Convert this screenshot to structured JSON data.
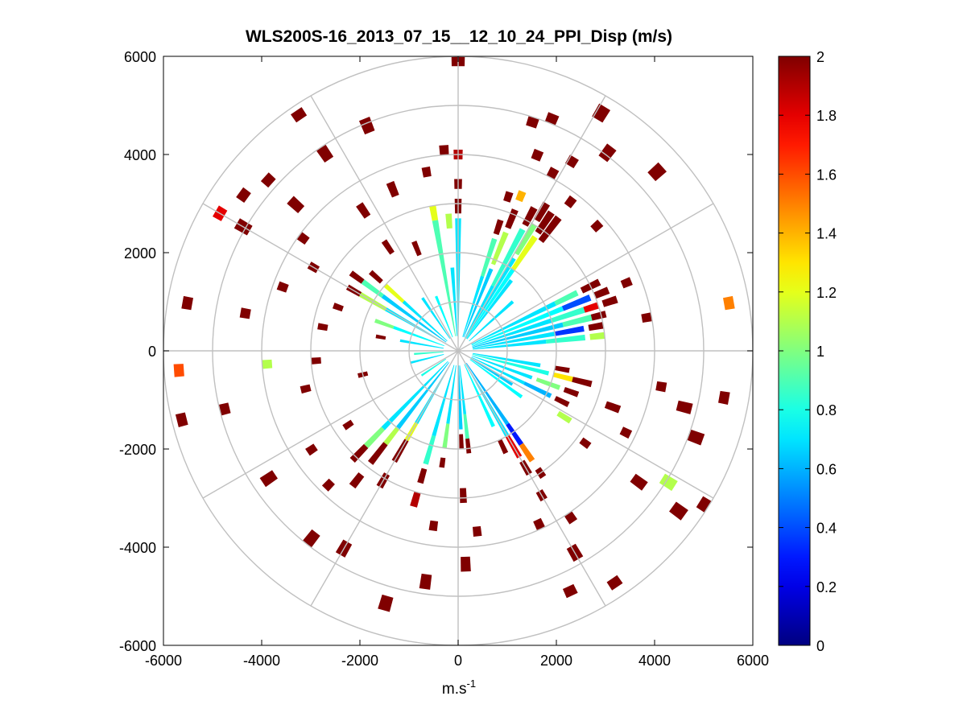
{
  "chart_data": {
    "type": "heatmap",
    "subtype": "polar-ppi",
    "title": "WLS200S-16_2013_07_15__12_10_24_PPI_Disp (m/s)",
    "xlabel": "m.s",
    "xlabel_superscript": "-1",
    "ylabel": "",
    "xlim": [
      -6000,
      6000
    ],
    "ylim": [
      -6000,
      6000
    ],
    "x_ticks": [
      -6000,
      -4000,
      -2000,
      0,
      2000,
      4000,
      6000
    ],
    "y_ticks": [
      -6000,
      -4000,
      -2000,
      0,
      2000,
      4000,
      6000
    ],
    "x_tick_labels": [
      "-6000",
      "-4000",
      "-2000",
      "0",
      "2000",
      "4000",
      "6000"
    ],
    "y_tick_labels": [
      "-6000",
      "-4000",
      "-2000",
      "0",
      "2000",
      "4000",
      "6000"
    ],
    "polar_grid": {
      "ring_radii": [
        1000,
        2000,
        3000,
        4000,
        5000,
        6000
      ],
      "spoke_angles_deg": [
        0,
        30,
        60,
        90,
        120,
        150,
        180,
        210,
        240,
        270,
        300,
        330
      ]
    },
    "colorbar": {
      "colormap": "jet",
      "min": 0,
      "max": 2,
      "ticks": [
        0,
        0.2,
        0.4,
        0.6,
        0.8,
        1,
        1.2,
        1.4,
        1.6,
        1.8,
        2
      ],
      "tick_labels": [
        "0",
        "0.2",
        "0.4",
        "0.6",
        "0.8",
        "1",
        "1.2",
        "1.4",
        "1.6",
        "1.8",
        "2"
      ]
    },
    "range_gates": {
      "min_range": 250,
      "max_range": 6000,
      "gate_spacing": 50
    },
    "beams": [
      {
        "azimuth": 0,
        "cells": [
          [
            300,
            2700,
            0.7
          ],
          [
            2800,
            3100,
            2
          ],
          [
            3300,
            3500,
            2
          ],
          [
            3900,
            4100,
            1.9
          ],
          [
            5800,
            6000,
            2
          ]
        ]
      },
      {
        "azimuth": 18,
        "cells": [
          [
            300,
            1600,
            0.7
          ],
          [
            1600,
            2400,
            0.9
          ],
          [
            2500,
            2800,
            2
          ],
          [
            3200,
            3400,
            2
          ],
          [
            4800,
            5000,
            2
          ]
        ]
      },
      {
        "azimuth": 22,
        "cells": [
          [
            300,
            1800,
            0.65
          ],
          [
            1900,
            2600,
            1.1
          ],
          [
            2700,
            3100,
            2
          ],
          [
            3300,
            3500,
            1.4
          ],
          [
            4200,
            4400,
            2
          ],
          [
            5000,
            5200,
            2
          ]
        ]
      },
      {
        "azimuth": 28,
        "cells": [
          [
            300,
            1500,
            0.7
          ],
          [
            1500,
            2800,
            0.85
          ],
          [
            2900,
            3300,
            2
          ],
          [
            4000,
            4200,
            2
          ]
        ]
      },
      {
        "azimuth": 31,
        "cells": [
          [
            300,
            2200,
            0.7
          ],
          [
            2300,
            3000,
            1.0
          ],
          [
            3100,
            3500,
            2
          ],
          [
            4400,
            4600,
            2
          ],
          [
            5500,
            5800,
            2
          ]
        ]
      },
      {
        "azimuth": 34,
        "cells": [
          [
            300,
            2000,
            0.75
          ],
          [
            2000,
            2800,
            1.2
          ],
          [
            2900,
            3400,
            2
          ]
        ]
      },
      {
        "azimuth": 37,
        "cells": [
          [
            300,
            1800,
            0.7
          ],
          [
            2800,
            3400,
            2
          ],
          [
            3700,
            3900,
            2
          ],
          [
            4900,
            5200,
            2
          ]
        ]
      },
      {
        "azimuth": 48,
        "cells": [
          [
            300,
            1500,
            0.7
          ],
          [
            3700,
            3900,
            2
          ],
          [
            5300,
            5600,
            2
          ]
        ]
      },
      {
        "azimuth": 64,
        "cells": [
          [
            300,
            2200,
            0.7
          ],
          [
            2200,
            2700,
            0.9
          ],
          [
            2800,
            3200,
            2
          ]
        ]
      },
      {
        "azimuth": 68,
        "cells": [
          [
            300,
            2300,
            0.75
          ],
          [
            2300,
            2900,
            0.4
          ],
          [
            3000,
            3300,
            2
          ],
          [
            3600,
            3800,
            2
          ]
        ]
      },
      {
        "azimuth": 72,
        "cells": [
          [
            300,
            2000,
            0.7
          ],
          [
            2000,
            2700,
            0.85
          ],
          [
            2700,
            3000,
            1.8
          ],
          [
            3100,
            3400,
            2
          ]
        ]
      },
      {
        "azimuth": 76,
        "cells": [
          [
            300,
            2200,
            0.65
          ],
          [
            2200,
            2800,
            0.9
          ],
          [
            2800,
            3100,
            2
          ]
        ]
      },
      {
        "azimuth": 80,
        "cells": [
          [
            300,
            2000,
            0.7
          ],
          [
            2000,
            2600,
            0.35
          ],
          [
            2700,
            3000,
            2
          ],
          [
            3800,
            4000,
            2
          ],
          [
            5500,
            5700,
            1.5
          ]
        ]
      },
      {
        "azimuth": 84,
        "cells": [
          [
            300,
            1800,
            0.7
          ],
          [
            1800,
            2600,
            0.85
          ],
          [
            2700,
            3000,
            1.1
          ]
        ]
      },
      {
        "azimuth": 100,
        "cells": [
          [
            300,
            1700,
            0.7
          ],
          [
            2000,
            2300,
            2
          ],
          [
            4100,
            4300,
            2
          ],
          [
            5400,
            5600,
            2
          ]
        ]
      },
      {
        "azimuth": 104,
        "cells": [
          [
            300,
            1900,
            0.8
          ],
          [
            2000,
            2400,
            1.3
          ],
          [
            2400,
            2800,
            2
          ],
          [
            4600,
            4900,
            2
          ]
        ]
      },
      {
        "azimuth": 110,
        "cells": [
          [
            300,
            1600,
            0.7
          ],
          [
            1700,
            2200,
            1.0
          ],
          [
            2300,
            2600,
            2
          ],
          [
            3200,
            3500,
            2
          ],
          [
            5000,
            5300,
            2
          ]
        ]
      },
      {
        "azimuth": 116,
        "cells": [
          [
            300,
            1500,
            0.7
          ],
          [
            1500,
            2100,
            0.6
          ],
          [
            2200,
            2500,
            2
          ],
          [
            3700,
            3900,
            2
          ]
        ]
      },
      {
        "azimuth": 122,
        "cells": [
          [
            300,
            1300,
            0.65
          ],
          [
            2400,
            2700,
            1.1
          ],
          [
            4900,
            5200,
            1.1
          ],
          [
            5800,
            6000,
            2
          ]
        ]
      },
      {
        "azimuth": 126,
        "cells": [
          [
            300,
            1600,
            0.75
          ],
          [
            3100,
            3300,
            2
          ],
          [
            4400,
            4700,
            2
          ],
          [
            5400,
            5700,
            2
          ]
        ]
      },
      {
        "azimuth": 146,
        "cells": [
          [
            300,
            1800,
            0.6
          ],
          [
            1800,
            2300,
            0.3
          ],
          [
            2300,
            2700,
            1.5
          ],
          [
            2900,
            3100,
            2
          ],
          [
            4000,
            4200,
            2
          ],
          [
            5600,
            5800,
            2
          ]
        ]
      },
      {
        "azimuth": 150,
        "cells": [
          [
            300,
            2000,
            0.7
          ],
          [
            2000,
            2500,
            1.8
          ],
          [
            2600,
            2900,
            2
          ],
          [
            3300,
            3500,
            2
          ],
          [
            4600,
            4900,
            2
          ]
        ]
      },
      {
        "azimuth": 155,
        "cells": [
          [
            300,
            1700,
            0.75
          ],
          [
            2000,
            2300,
            2
          ],
          [
            3800,
            4000,
            2
          ],
          [
            5300,
            5500,
            2
          ]
        ]
      },
      {
        "azimuth": 174,
        "cells": [
          [
            300,
            1300,
            0.7
          ],
          [
            1300,
            1800,
            0.9
          ],
          [
            1800,
            2100,
            2
          ],
          [
            3600,
            3800,
            2
          ]
        ]
      },
      {
        "azimuth": 178,
        "cells": [
          [
            300,
            1600,
            0.65
          ],
          [
            1700,
            2000,
            2
          ],
          [
            2800,
            3100,
            2
          ],
          [
            4200,
            4500,
            2
          ]
        ]
      },
      {
        "azimuth": 188,
        "cells": [
          [
            300,
            1500,
            0.7
          ],
          [
            1500,
            2000,
            1.0
          ],
          [
            2200,
            2400,
            2
          ],
          [
            3500,
            3700,
            2
          ],
          [
            4600,
            4900,
            2
          ]
        ]
      },
      {
        "azimuth": 196,
        "cells": [
          [
            300,
            1800,
            0.7
          ],
          [
            1800,
            2400,
            0.85
          ],
          [
            2500,
            2800,
            2
          ],
          [
            3000,
            3300,
            1.9
          ],
          [
            5200,
            5500,
            2
          ]
        ]
      },
      {
        "azimuth": 210,
        "cells": [
          [
            300,
            1700,
            0.7
          ],
          [
            1700,
            2100,
            1.2
          ],
          [
            2100,
            2600,
            2
          ],
          [
            2900,
            3200,
            2
          ],
          [
            4500,
            4800,
            2
          ]
        ]
      },
      {
        "azimuth": 218,
        "cells": [
          [
            300,
            2000,
            0.65
          ],
          [
            2000,
            2400,
            1.1
          ],
          [
            2400,
            2900,
            2
          ],
          [
            3200,
            3500,
            2
          ],
          [
            4700,
            5000,
            2
          ]
        ]
      },
      {
        "azimuth": 224,
        "cells": [
          [
            300,
            2200,
            0.7
          ],
          [
            2200,
            2700,
            1.0
          ],
          [
            2700,
            3100,
            2
          ],
          [
            3700,
            3900,
            2
          ]
        ]
      },
      {
        "azimuth": 236,
        "cells": [
          [
            300,
            900,
            0.8
          ],
          [
            2600,
            2800,
            2
          ],
          [
            3500,
            3700,
            2
          ],
          [
            4500,
            4800,
            2
          ]
        ]
      },
      {
        "azimuth": 256,
        "cells": [
          [
            300,
            1000,
            0.7
          ],
          [
            1900,
            2100,
            2
          ],
          [
            3100,
            3300,
            2
          ],
          [
            4800,
            5000,
            2
          ],
          [
            5700,
            5900,
            2
          ]
        ]
      },
      {
        "azimuth": 266,
        "cells": [
          [
            300,
            900,
            0.85
          ],
          [
            2800,
            3000,
            2
          ],
          [
            3800,
            4000,
            1.1
          ],
          [
            5600,
            5800,
            1.6
          ]
        ]
      },
      {
        "azimuth": 280,
        "cells": [
          [
            300,
            1200,
            0.7
          ],
          [
            1500,
            1700,
            2
          ],
          [
            2700,
            2900,
            2
          ],
          [
            4300,
            4500,
            2
          ],
          [
            5500,
            5700,
            2
          ]
        ]
      },
      {
        "azimuth": 290,
        "cells": [
          [
            300,
            1400,
            0.75
          ],
          [
            1400,
            1800,
            1.0
          ],
          [
            2500,
            2700,
            2
          ],
          [
            3700,
            3900,
            2
          ]
        ]
      },
      {
        "azimuth": 300,
        "cells": [
          [
            300,
            1700,
            0.7
          ],
          [
            1700,
            2300,
            1.1
          ],
          [
            2300,
            2600,
            2
          ],
          [
            3300,
            3500,
            2
          ],
          [
            4900,
            5200,
            2
          ],
          [
            5500,
            5700,
            1.8
          ]
        ]
      },
      {
        "azimuth": 306,
        "cells": [
          [
            300,
            1900,
            0.65
          ],
          [
            1900,
            2400,
            0.9
          ],
          [
            2400,
            2700,
            2
          ],
          [
            3800,
            4000,
            2
          ],
          [
            5300,
            5500,
            2
          ]
        ]
      },
      {
        "azimuth": 312,
        "cells": [
          [
            300,
            1500,
            0.7
          ],
          [
            1500,
            2000,
            1.2
          ],
          [
            2100,
            2400,
            2
          ],
          [
            4300,
            4600,
            2
          ],
          [
            5100,
            5300,
            2
          ]
        ]
      },
      {
        "azimuth": 326,
        "cells": [
          [
            300,
            1300,
            0.7
          ],
          [
            2400,
            2700,
            2
          ],
          [
            3300,
            3600,
            2
          ],
          [
            4700,
            5000,
            2
          ],
          [
            5700,
            5900,
            2
          ]
        ]
      },
      {
        "azimuth": 338,
        "cells": [
          [
            300,
            1200,
            0.75
          ],
          [
            2100,
            2400,
            2
          ],
          [
            3400,
            3700,
            2
          ],
          [
            4800,
            5100,
            2
          ]
        ]
      },
      {
        "azimuth": 350,
        "cells": [
          [
            300,
            2700,
            0.9
          ],
          [
            2700,
            3000,
            1.2
          ],
          [
            3600,
            3800,
            2
          ]
        ]
      },
      {
        "azimuth": 356,
        "cells": [
          [
            300,
            1700,
            0.7
          ],
          [
            2500,
            2800,
            1.1
          ],
          [
            4000,
            4200,
            2
          ]
        ]
      }
    ]
  }
}
